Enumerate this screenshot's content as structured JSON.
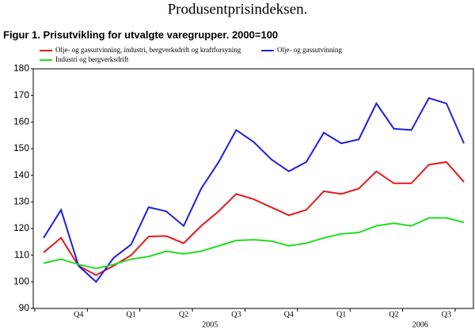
{
  "chart_data": {
    "type": "line",
    "title": "Produsentprisindeksen.",
    "subtitle": "Figur 1. Prisutvikling for utvalgte varegrupper. 2000=100",
    "categories": [
      null,
      null,
      "Q4",
      null,
      null,
      "Q1",
      null,
      null,
      "Q2",
      null,
      null,
      "Q3",
      null,
      null,
      "Q4",
      null,
      null,
      "Q1",
      null,
      null,
      "Q2",
      null,
      null,
      "Q3",
      null
    ],
    "years": [
      "2005",
      "2006"
    ],
    "series": [
      {
        "name": "Olje- og gassutvinning, industri, bergverksdrift og kraftforsyning",
        "color": "#e41a1c",
        "values": [
          111,
          116.5,
          106,
          102.5,
          106,
          110,
          117,
          117.2,
          114.5,
          121,
          126.5,
          133,
          131,
          128,
          125,
          127,
          134,
          133,
          135,
          141.5,
          137,
          137,
          144,
          145,
          137.5
        ]
      },
      {
        "name": "Olje- og gassutvinning",
        "color": "#1f1fe0",
        "values": [
          116.5,
          127,
          106,
          100,
          109,
          114,
          128,
          126.5,
          121,
          135,
          145,
          157,
          152.5,
          146,
          141.5,
          145,
          156,
          152,
          153.5,
          167,
          157.5,
          157,
          169,
          167,
          152
        ]
      },
      {
        "name": "Industri og bergverksdrift",
        "color": "#22dd22",
        "values": [
          107,
          108.5,
          106.5,
          105,
          106.5,
          108.5,
          109.5,
          111.5,
          110.5,
          111.5,
          113.5,
          115.5,
          115.8,
          115.3,
          113.5,
          114.5,
          116.5,
          118,
          118.5,
          121,
          122,
          121,
          124,
          124,
          122.3
        ]
      }
    ],
    "ylim": [
      90,
      180
    ],
    "yticks": [
      90,
      100,
      110,
      120,
      130,
      140,
      150,
      160,
      170,
      180
    ],
    "grid": false
  }
}
